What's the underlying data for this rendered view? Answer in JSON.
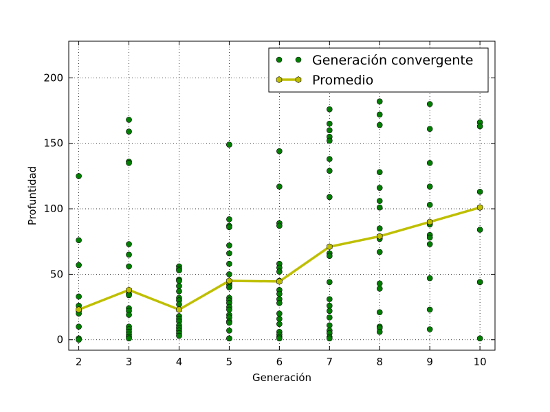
{
  "chart_data": {
    "type": "scatter",
    "title": "",
    "xlabel": "Generación",
    "ylabel": "Profuntidad",
    "xlim": [
      1.8,
      10.3
    ],
    "ylim": [
      -8,
      228
    ],
    "xticks": [
      2,
      3,
      4,
      5,
      6,
      7,
      8,
      9,
      10
    ],
    "yticks": [
      0,
      50,
      100,
      150,
      200
    ],
    "grid": true,
    "legend_position": "top-right",
    "series": [
      {
        "name": "Generación convergente",
        "kind": "scatter",
        "color": "#008000",
        "points": [
          [
            2,
            125
          ],
          [
            2,
            76
          ],
          [
            2,
            57
          ],
          [
            2,
            33
          ],
          [
            2,
            26
          ],
          [
            2,
            22
          ],
          [
            2,
            20
          ],
          [
            2,
            10
          ],
          [
            2,
            1
          ],
          [
            2,
            0
          ],
          [
            3,
            168
          ],
          [
            3,
            159
          ],
          [
            3,
            136
          ],
          [
            3,
            135
          ],
          [
            3,
            73
          ],
          [
            3,
            65
          ],
          [
            3,
            56
          ],
          [
            3,
            35
          ],
          [
            3,
            34
          ],
          [
            3,
            24
          ],
          [
            3,
            22
          ],
          [
            3,
            19
          ],
          [
            3,
            10
          ],
          [
            3,
            8
          ],
          [
            3,
            6
          ],
          [
            3,
            4
          ],
          [
            3,
            2
          ],
          [
            3,
            1
          ],
          [
            4,
            56
          ],
          [
            4,
            54
          ],
          [
            4,
            53
          ],
          [
            4,
            46
          ],
          [
            4,
            45
          ],
          [
            4,
            41
          ],
          [
            4,
            37
          ],
          [
            4,
            32
          ],
          [
            4,
            30
          ],
          [
            4,
            27
          ],
          [
            4,
            18
          ],
          [
            4,
            16
          ],
          [
            4,
            14
          ],
          [
            4,
            11
          ],
          [
            4,
            9
          ],
          [
            4,
            7
          ],
          [
            4,
            5
          ],
          [
            4,
            3
          ],
          [
            5,
            149
          ],
          [
            5,
            149
          ],
          [
            5,
            92
          ],
          [
            5,
            87
          ],
          [
            5,
            86
          ],
          [
            5,
            72
          ],
          [
            5,
            66
          ],
          [
            5,
            58
          ],
          [
            5,
            50
          ],
          [
            5,
            43
          ],
          [
            5,
            42
          ],
          [
            5,
            40
          ],
          [
            5,
            32
          ],
          [
            5,
            30
          ],
          [
            5,
            28
          ],
          [
            5,
            25
          ],
          [
            5,
            23
          ],
          [
            5,
            19
          ],
          [
            5,
            17
          ],
          [
            5,
            14
          ],
          [
            5,
            13
          ],
          [
            5,
            7
          ],
          [
            5,
            1
          ],
          [
            5,
            1
          ],
          [
            6,
            144
          ],
          [
            6,
            117
          ],
          [
            6,
            89
          ],
          [
            6,
            87
          ],
          [
            6,
            58
          ],
          [
            6,
            55
          ],
          [
            6,
            52
          ],
          [
            6,
            45
          ],
          [
            6,
            38
          ],
          [
            6,
            35
          ],
          [
            6,
            31
          ],
          [
            6,
            28
          ],
          [
            6,
            20
          ],
          [
            6,
            16
          ],
          [
            6,
            12
          ],
          [
            6,
            6
          ],
          [
            6,
            4
          ],
          [
            6,
            2
          ],
          [
            6,
            1
          ],
          [
            7,
            176
          ],
          [
            7,
            165
          ],
          [
            7,
            160
          ],
          [
            7,
            155
          ],
          [
            7,
            152
          ],
          [
            7,
            138
          ],
          [
            7,
            129
          ],
          [
            7,
            109
          ],
          [
            7,
            66
          ],
          [
            7,
            64
          ],
          [
            7,
            44
          ],
          [
            7,
            31
          ],
          [
            7,
            26
          ],
          [
            7,
            22
          ],
          [
            7,
            17
          ],
          [
            7,
            11
          ],
          [
            7,
            7
          ],
          [
            7,
            5
          ],
          [
            7,
            2
          ],
          [
            7,
            1
          ],
          [
            8,
            182
          ],
          [
            8,
            172
          ],
          [
            8,
            164
          ],
          [
            8,
            128
          ],
          [
            8,
            116
          ],
          [
            8,
            106
          ],
          [
            8,
            101
          ],
          [
            8,
            85
          ],
          [
            8,
            77
          ],
          [
            8,
            67
          ],
          [
            8,
            43
          ],
          [
            8,
            39
          ],
          [
            8,
            21
          ],
          [
            8,
            10
          ],
          [
            8,
            9
          ],
          [
            8,
            6
          ],
          [
            9,
            180
          ],
          [
            9,
            161
          ],
          [
            9,
            135
          ],
          [
            9,
            117
          ],
          [
            9,
            103
          ],
          [
            9,
            88
          ],
          [
            9,
            80
          ],
          [
            9,
            78
          ],
          [
            9,
            73
          ],
          [
            9,
            47
          ],
          [
            9,
            23
          ],
          [
            9,
            8
          ],
          [
            10,
            166
          ],
          [
            10,
            163
          ],
          [
            10,
            113
          ],
          [
            10,
            101
          ],
          [
            10,
            84
          ],
          [
            10,
            44
          ],
          [
            10,
            44
          ],
          [
            10,
            1
          ]
        ]
      },
      {
        "name": "Promedio",
        "kind": "line",
        "color": "#bfbf00",
        "marker": "hexagon",
        "x": [
          2,
          3,
          4,
          5,
          6,
          7,
          8,
          9,
          10
        ],
        "y": [
          23,
          38,
          23,
          45,
          44.5,
          71,
          79,
          90,
          101
        ]
      }
    ]
  }
}
